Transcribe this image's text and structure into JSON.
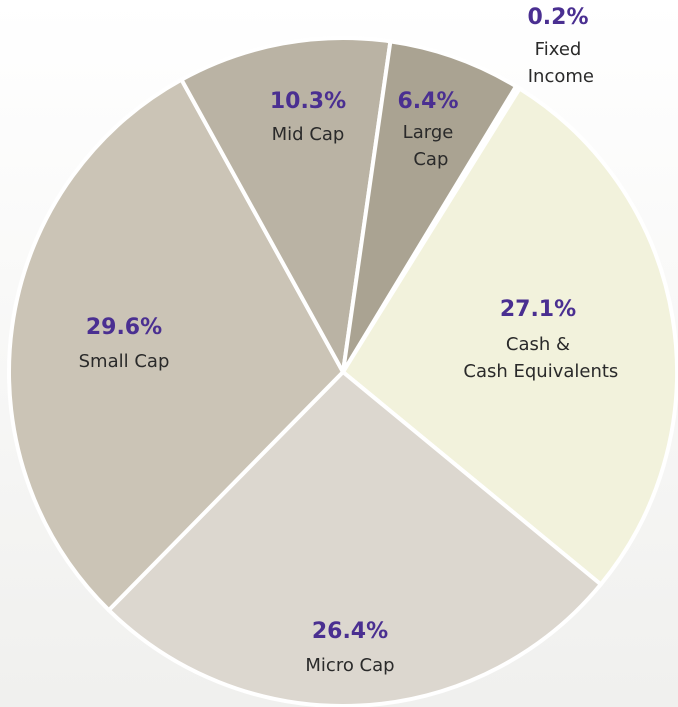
{
  "chart_data": {
    "type": "pie",
    "categories": [
      "Fixed Income",
      "Cash & Cash Equivalents",
      "Micro Cap",
      "Small Cap",
      "Mid Cap",
      "Large Cap"
    ],
    "values": [
      0.2,
      27.1,
      26.4,
      29.6,
      10.3,
      6.4
    ],
    "value_labels": [
      "0.2%",
      "27.1%",
      "26.4%",
      "29.6%",
      "10.3%",
      "6.4%"
    ],
    "colors": [
      "#f6f6ea",
      "#f2f2dc",
      "#dcd7cf",
      "#cbc4b6",
      "#bab3a4",
      "#aaa392"
    ]
  }
}
